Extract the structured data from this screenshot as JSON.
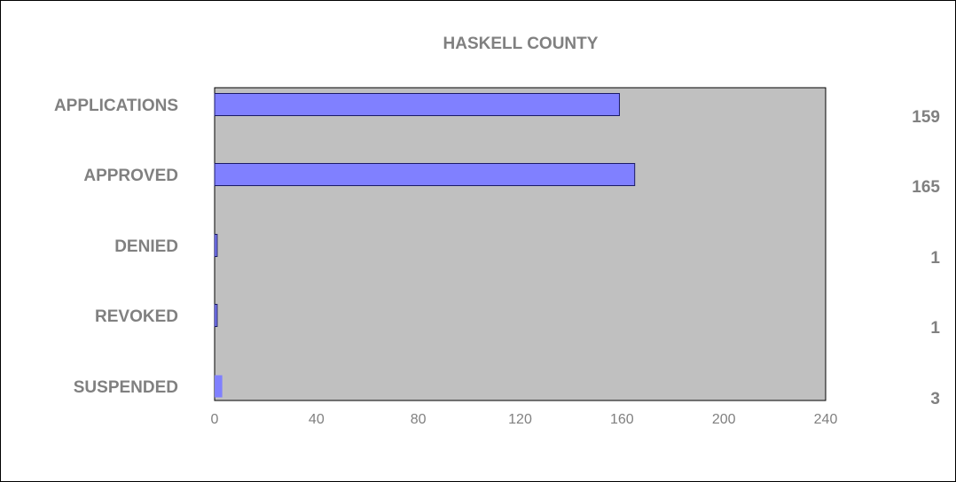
{
  "chart_data": {
    "type": "bar",
    "orientation": "horizontal",
    "title": "HASKELL COUNTY",
    "categories": [
      "APPLICATIONS",
      "APPROVED",
      "DENIED",
      "REVOKED",
      "SUSPENDED"
    ],
    "values": [
      159,
      165,
      1,
      1,
      3
    ],
    "value_labels": [
      "159",
      "165",
      "1",
      "1",
      "3"
    ],
    "xlim": [
      0,
      240
    ],
    "x_ticks": [
      0,
      40,
      80,
      120,
      160,
      200,
      240
    ],
    "x_tick_labels": [
      "0",
      "40",
      "80",
      "120",
      "160",
      "200",
      "240"
    ],
    "xlabel": "",
    "ylabel": "",
    "grid": false,
    "legend": "none",
    "colors": {
      "bar": "#8080ff",
      "bar_stroke": "#1a1a66",
      "plot_bg": "#c0c0c0",
      "text": "#808080",
      "frame": "#000000"
    }
  }
}
